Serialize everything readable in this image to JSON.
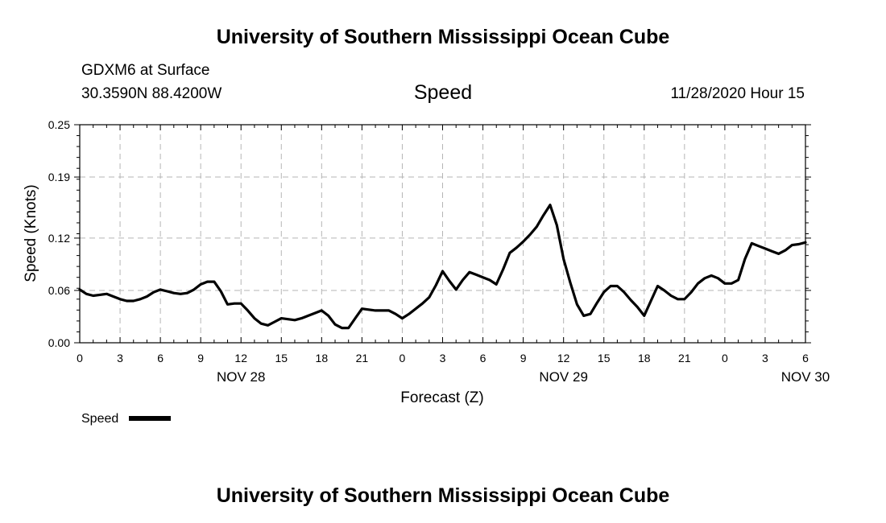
{
  "header": {
    "title_top": "University of Southern Mississippi Ocean Cube",
    "station": "GDXM6 at Surface",
    "coords": "30.3590N 88.4200W",
    "variable": "Speed",
    "datetime": "11/28/2020 Hour 15"
  },
  "footer": {
    "title_bottom": "University of Southern Mississippi Ocean Cube"
  },
  "chart_data": {
    "type": "line",
    "title": "Speed",
    "xlabel": "Forecast (Z)",
    "ylabel": "Speed (Knots)",
    "ylim": [
      0,
      0.25
    ],
    "yticks": [
      0.0,
      0.06,
      0.12,
      0.19,
      0.25
    ],
    "ytick_labels": [
      "0.00",
      "0.06",
      "0.12",
      "0.19",
      "0.25"
    ],
    "xlim_hours": [
      0,
      54
    ],
    "xtick_hours": [
      0,
      3,
      6,
      9,
      12,
      15,
      18,
      21,
      24,
      27,
      30,
      33,
      36,
      39,
      42,
      45,
      48,
      51,
      54
    ],
    "xtick_labels": [
      "0",
      "3",
      "6",
      "9",
      "12",
      "15",
      "18",
      "21",
      "0",
      "3",
      "6",
      "9",
      "12",
      "15",
      "18",
      "21",
      "0",
      "3",
      "6"
    ],
    "day_labels": [
      {
        "hour": 12,
        "label": "NOV 28"
      },
      {
        "hour": 36,
        "label": "NOV 29"
      },
      {
        "hour": 54,
        "label": "NOV 30"
      }
    ],
    "grid": true,
    "legend": [
      {
        "name": "Speed",
        "color": "#000000"
      }
    ],
    "series": [
      {
        "name": "Speed",
        "x": [
          0,
          0.5,
          1,
          1.5,
          2,
          2.5,
          3,
          3.5,
          4,
          4.5,
          5,
          5.5,
          6,
          6.5,
          7,
          7.5,
          8,
          8.5,
          9,
          9.5,
          10,
          10.5,
          11,
          11.5,
          12,
          12.5,
          13,
          13.5,
          14,
          14.5,
          15,
          15.5,
          16,
          16.5,
          17,
          17.5,
          18,
          18.5,
          19,
          19.5,
          20,
          20.5,
          21,
          21.5,
          22,
          22.5,
          23,
          23.5,
          24,
          24.5,
          25,
          25.5,
          26,
          26.5,
          27,
          27.5,
          28,
          28.5,
          29,
          29.5,
          30,
          30.5,
          31,
          31.5,
          32,
          32.5,
          33,
          33.5,
          34,
          34.5,
          35,
          35.5,
          36,
          36.5,
          37,
          37.5,
          38,
          38.5,
          39,
          39.5,
          40,
          40.5,
          41,
          41.5,
          42,
          42.5,
          43,
          43.5,
          44,
          44.5,
          45,
          45.5,
          46,
          46.5,
          47,
          47.5,
          48,
          48.5,
          49,
          49.5,
          50,
          50.5,
          51,
          51.5,
          52,
          52.5,
          53,
          53.5,
          54
        ],
        "values": [
          0.061,
          0.056,
          0.054,
          0.055,
          0.056,
          0.053,
          0.05,
          0.048,
          0.048,
          0.05,
          0.053,
          0.058,
          0.061,
          0.059,
          0.057,
          0.056,
          0.057,
          0.061,
          0.067,
          0.07,
          0.07,
          0.059,
          0.044,
          0.045,
          0.045,
          0.037,
          0.028,
          0.022,
          0.02,
          0.024,
          0.028,
          0.027,
          0.026,
          0.028,
          0.031,
          0.034,
          0.037,
          0.031,
          0.021,
          0.017,
          0.017,
          0.028,
          0.039,
          0.038,
          0.037,
          0.037,
          0.037,
          0.033,
          0.028,
          0.033,
          0.039,
          0.045,
          0.052,
          0.066,
          0.082,
          0.071,
          0.061,
          0.072,
          0.081,
          0.078,
          0.075,
          0.072,
          0.067,
          0.084,
          0.103,
          0.109,
          0.116,
          0.124,
          0.133,
          0.146,
          0.158,
          0.135,
          0.096,
          0.069,
          0.044,
          0.031,
          0.033,
          0.046,
          0.058,
          0.065,
          0.065,
          0.058,
          0.049,
          0.041,
          0.031,
          0.048,
          0.065,
          0.06,
          0.054,
          0.05,
          0.05,
          0.058,
          0.068,
          0.074,
          0.077,
          0.074,
          0.068,
          0.068,
          0.072,
          0.096,
          0.114,
          0.111,
          0.108,
          0.105,
          0.102,
          0.106,
          0.112,
          0.113,
          0.115
        ]
      }
    ]
  }
}
